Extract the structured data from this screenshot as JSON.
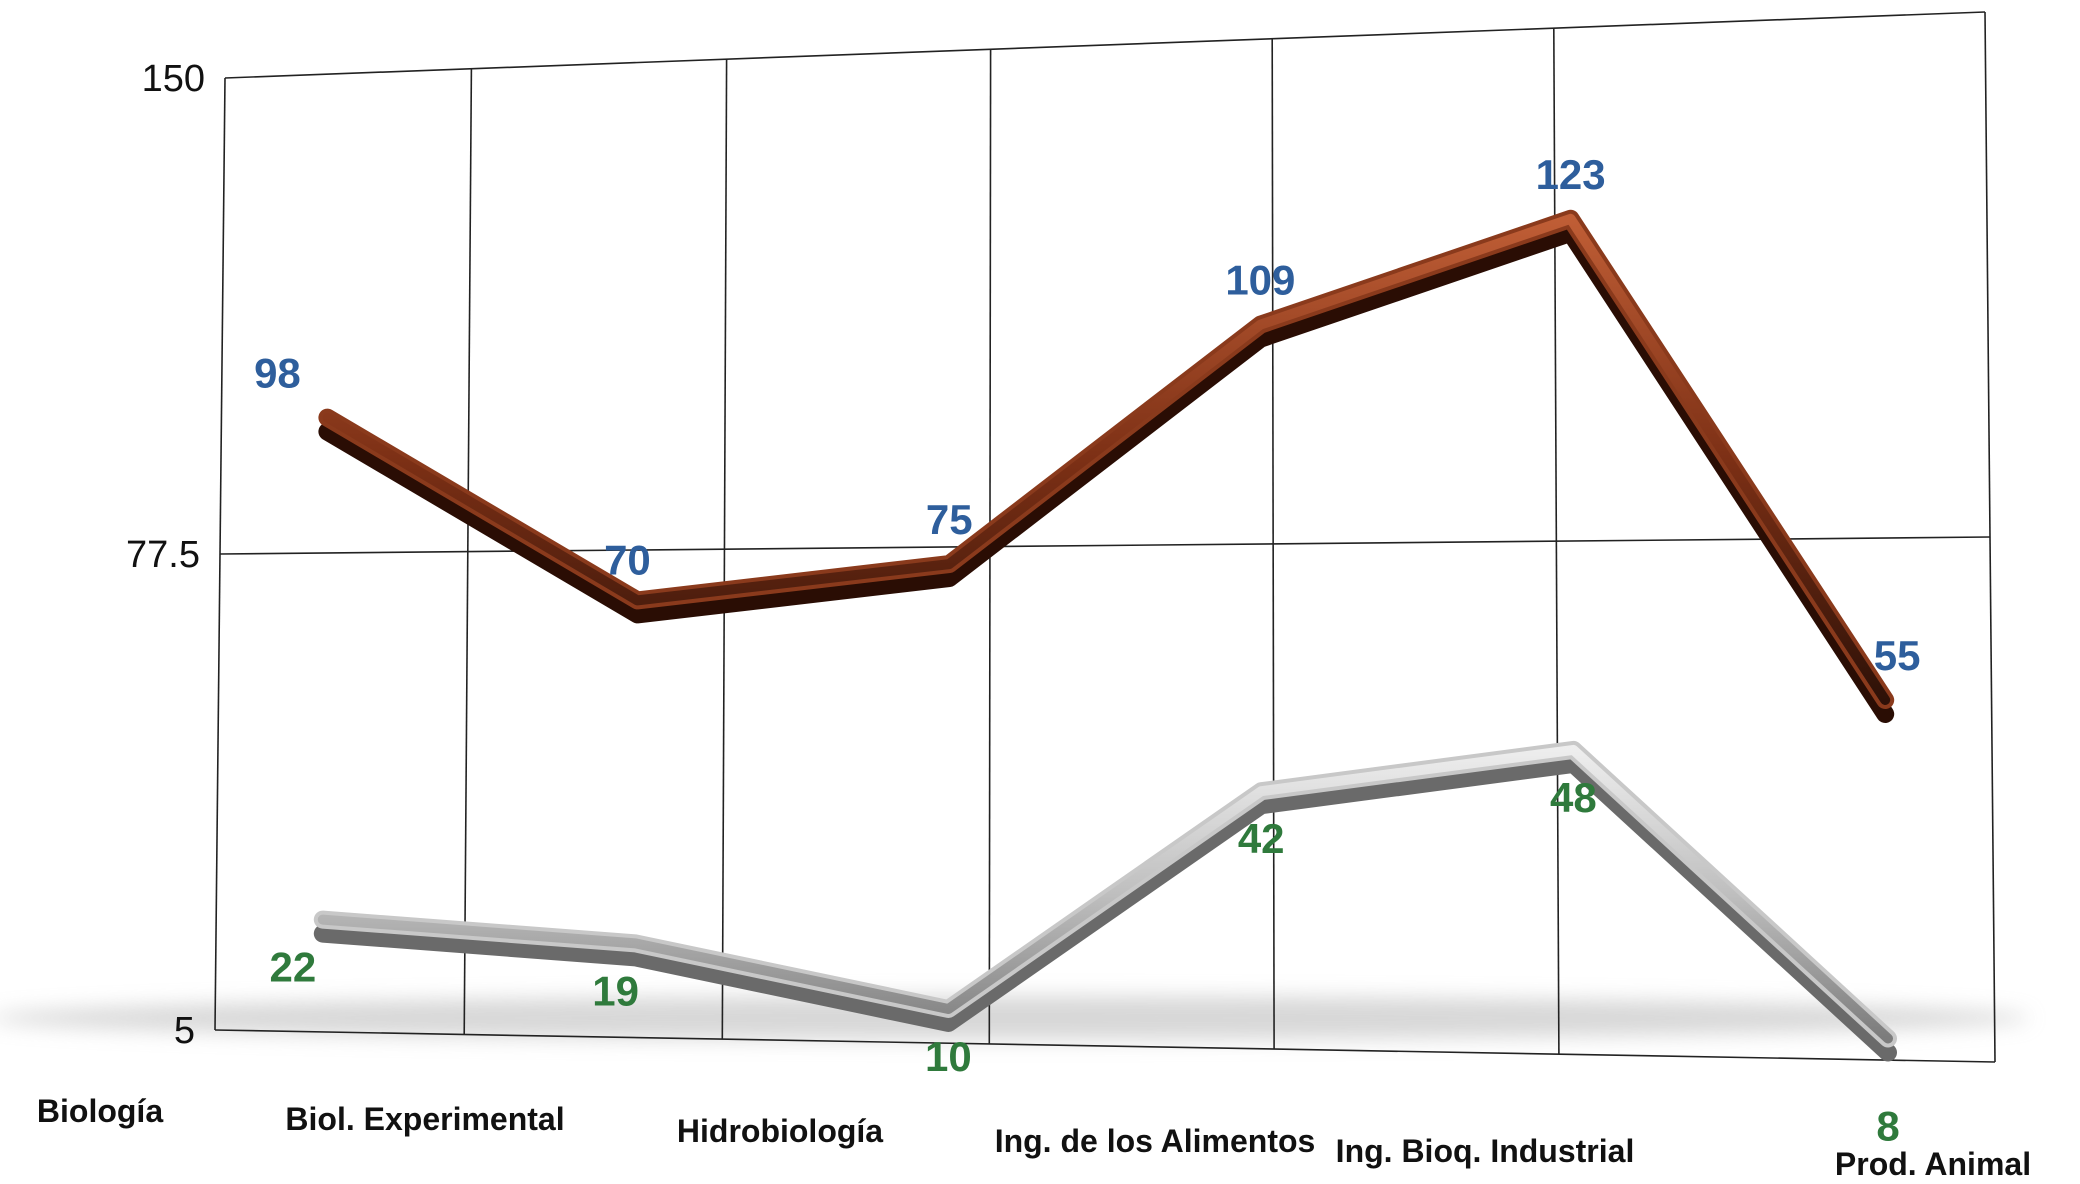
{
  "chart_data": {
    "type": "line",
    "categories": [
      "Biología",
      "Biol. Experimental",
      "Hidrobiología",
      "Ing. de los Alimentos",
      "Ing. Bioq. Industrial",
      "Prod. Animal"
    ],
    "series": [
      {
        "values": [
          98,
          70,
          75,
          109,
          123,
          55
        ],
        "color": "#8a3a1c"
      },
      {
        "values": [
          22,
          19,
          10,
          42,
          48,
          8
        ],
        "color": "#c8c8c8"
      }
    ],
    "y_ticks": [
      "150",
      "77.5",
      "5"
    ],
    "ylim": [
      5,
      150
    ],
    "xlabel": "",
    "ylabel": "",
    "grid": true,
    "label_colors": [
      "#2e5e9c",
      "#2f7a3c"
    ]
  }
}
